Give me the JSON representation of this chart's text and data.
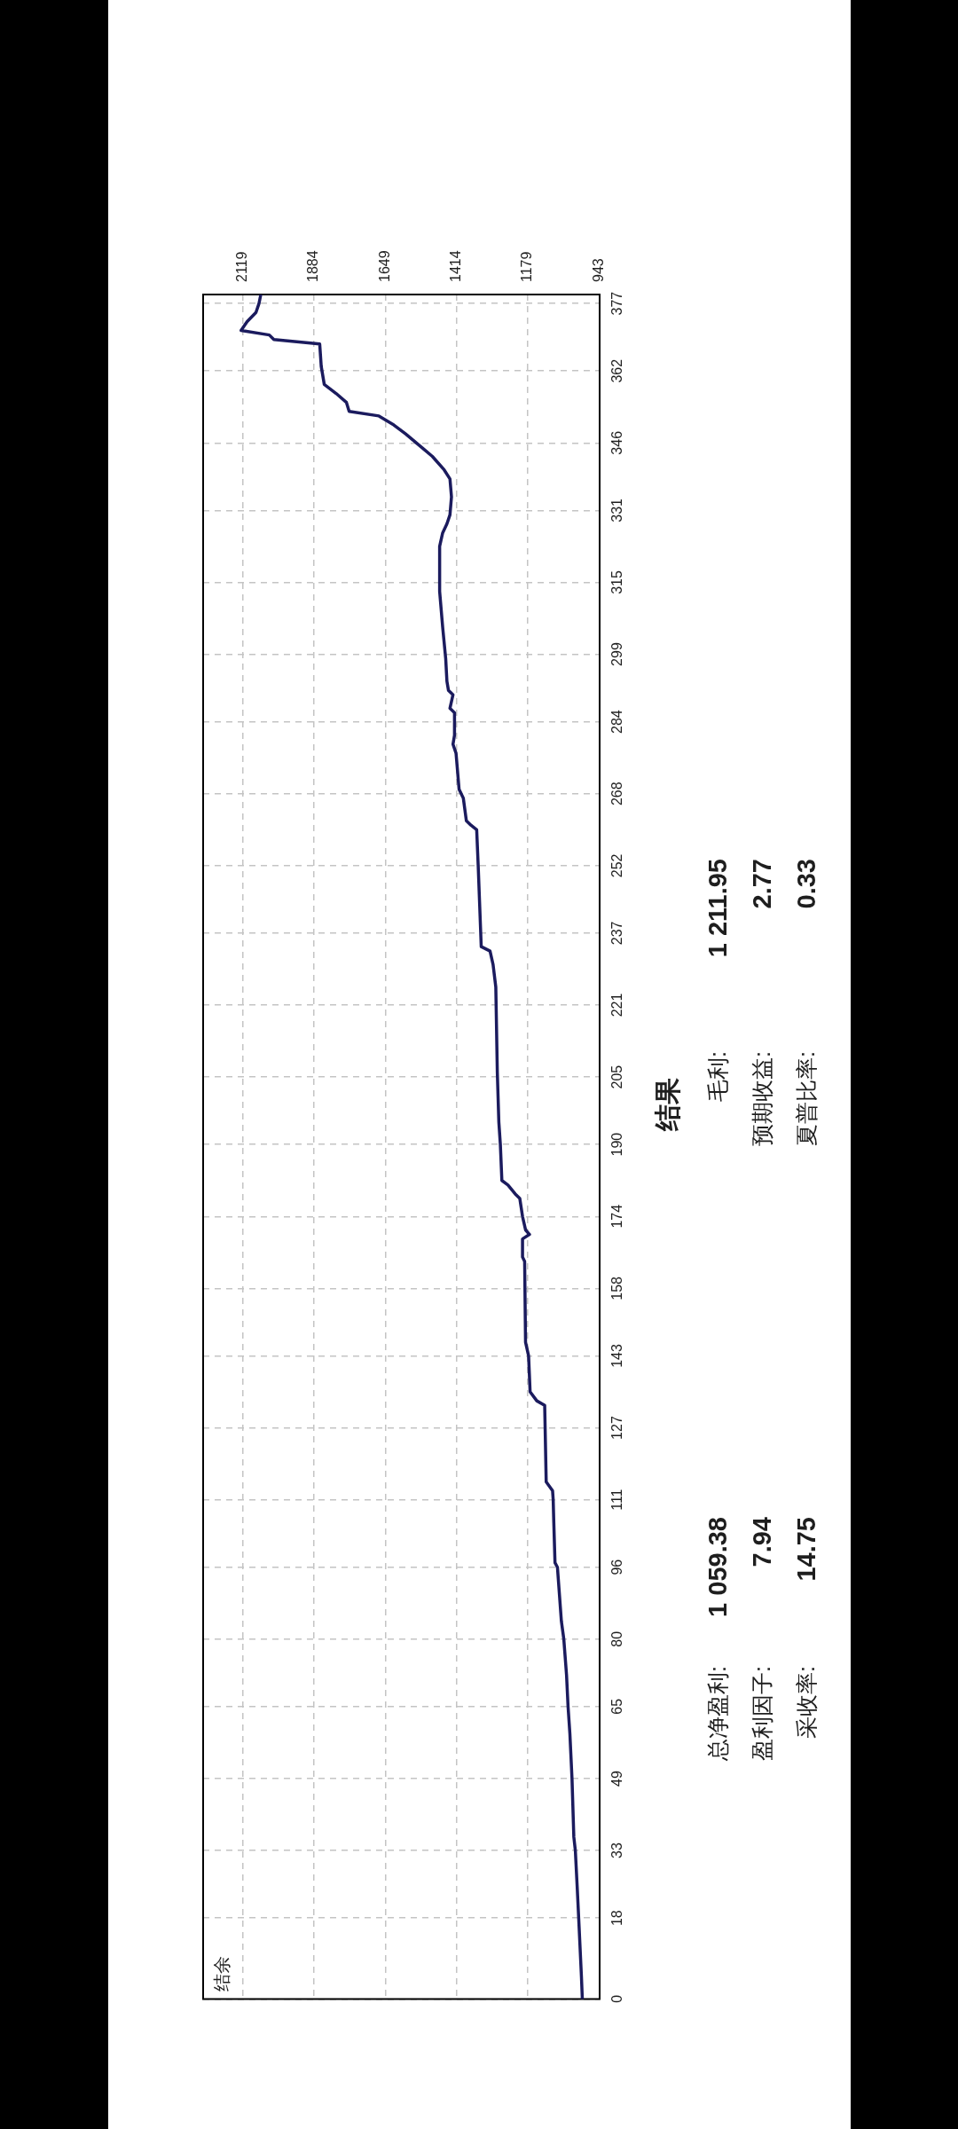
{
  "chart_data": [
    {
      "type": "line",
      "x": [
        1000,
        1003,
        1012,
        1017,
        1023,
        1028,
        1034,
        1041,
        1047,
        1052,
        1061,
        1069,
        1082,
        1090,
        1094,
        1096,
        1098,
        1119,
        1124,
        1150,
        1172,
        1177,
        1187,
        1190,
        1197,
        1197,
        1174,
        1187,
        1197,
        1206,
        1221,
        1245,
        1265,
        1270,
        1275,
        1280,
        1285,
        1294,
        1304,
        1333,
        1338,
        1343,
        1348,
        1367,
        1382,
        1392,
        1406,
        1416,
        1426,
        1421,
        1421,
        1436,
        1426,
        1441,
        1446,
        1450,
        1460,
        1470,
        1470,
        1460,
        1446,
        1436,
        1431,
        1436,
        1455,
        1494,
        1529,
        1582,
        1621,
        1670,
        1768,
        1777,
        1811,
        1850,
        1860,
        1865,
        2016,
        2031,
        2124,
        2104,
        2075,
        2065,
        2059
      ],
      "values": [
        0,
        5,
        18,
        25,
        33,
        36,
        49,
        59,
        65,
        72,
        80,
        84,
        96,
        97,
        106,
        111,
        113,
        115,
        132,
        133,
        135,
        143,
        146,
        164,
        165,
        169,
        170,
        171,
        174,
        178,
        179,
        181,
        182,
        190,
        195,
        206,
        225,
        230,
        233,
        234,
        243,
        252,
        260,
        261,
        262,
        267,
        269,
        277,
        279,
        281,
        286,
        287,
        290,
        291,
        293,
        298,
        305,
        313,
        323,
        326,
        328,
        330,
        334,
        338,
        340,
        343,
        345,
        348,
        350,
        352,
        353,
        355,
        357,
        359,
        363,
        368,
        369,
        370,
        371,
        373,
        375,
        377,
        379
      ],
      "color": "#1b1b5e",
      "marker": "none",
      "grid": true,
      "xlim": [
        2249,
        943
      ],
      "xticks": [
        943,
        1179,
        1414,
        1649,
        1884,
        2119
      ],
      "ylim": [
        0,
        379
      ],
      "yticks": [
        0,
        18,
        33,
        49,
        65,
        80,
        96,
        111,
        127,
        143,
        158,
        174,
        190,
        205,
        221,
        237,
        252,
        268,
        284,
        299,
        315,
        331,
        346,
        362,
        377
      ],
      "annotations": [
        "结余"
      ]
    },
    {
      "type": "other",
      "title": "结果",
      "annotations": [
        "总净盈利:",
        "1 059.38",
        "毛利:",
        "1 211.95",
        "盈利因子:",
        "7.94",
        "预期收益:",
        "2.77",
        "采收率:",
        "14.75",
        "夏普比率:",
        "0.33"
      ]
    }
  ]
}
